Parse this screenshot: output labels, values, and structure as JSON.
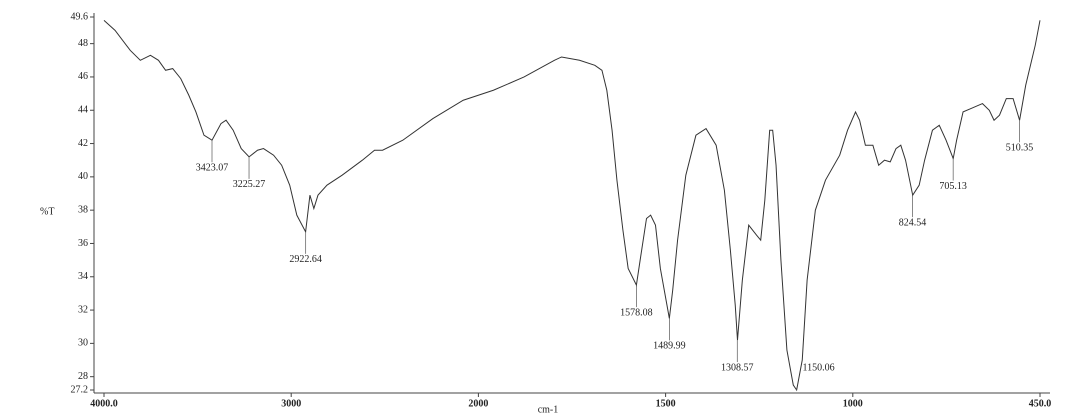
{
  "chart_data": {
    "type": "line",
    "ylabel": "%T",
    "xlabel": "cm-1",
    "xlim": [
      4000,
      450
    ],
    "ylim": [
      27.2,
      49.6
    ],
    "xticks": [
      {
        "value": 4000,
        "label": "4000.0"
      },
      3000,
      2000,
      1500,
      1000,
      {
        "value": 450,
        "label": "450.0"
      }
    ],
    "yticks": [
      27.2,
      28,
      30,
      32,
      34,
      36,
      38,
      40,
      42,
      44,
      46,
      48,
      49.6
    ],
    "series": [
      {
        "color": "#333333",
        "x": [
          4000,
          3941,
          3860,
          3806,
          3752,
          3709,
          3671,
          3633,
          3590,
          3547,
          3509,
          3466,
          3423,
          3375,
          3348,
          3310,
          3267,
          3225,
          3180,
          3148,
          3094,
          3051,
          3008,
          2970,
          2923,
          2900,
          2879,
          2857,
          2809,
          2728,
          2620,
          2555,
          2512,
          2404,
          2243,
          2081,
          1960,
          1878,
          1797,
          1778,
          1730,
          1689,
          1670,
          1657,
          1643,
          1630,
          1614,
          1600,
          1578,
          1568,
          1551,
          1540,
          1527,
          1514,
          1490,
          1481,
          1468,
          1446,
          1419,
          1392,
          1365,
          1343,
          1327,
          1314,
          1308,
          1295,
          1278,
          1257,
          1246,
          1235,
          1222,
          1214,
          1205,
          1192,
          1176,
          1159,
          1150,
          1135,
          1122,
          1100,
          1073,
          1035,
          1014,
          992,
          980,
          963,
          941,
          924,
          907,
          890,
          873,
          859,
          845,
          824,
          805,
          789,
          766,
          746,
          726,
          705,
          695,
          676,
          653,
          619,
          599,
          585,
          569,
          549,
          529,
          510,
          492,
          478,
          464,
          450
        ],
        "values": [
          49.4,
          48.8,
          47.6,
          47.0,
          47.3,
          47.0,
          46.4,
          46.5,
          45.9,
          44.9,
          43.9,
          42.5,
          42.2,
          43.2,
          43.4,
          42.8,
          41.7,
          41.2,
          41.6,
          41.7,
          41.3,
          40.7,
          39.5,
          37.7,
          36.7,
          38.9,
          38.1,
          38.9,
          39.5,
          40.1,
          41.0,
          41.6,
          41.6,
          42.2,
          43.5,
          44.6,
          45.2,
          46.0,
          47.0,
          47.2,
          47.0,
          46.7,
          46.4,
          45.2,
          42.8,
          39.8,
          36.8,
          34.5,
          33.5,
          35.0,
          37.5,
          37.7,
          37.1,
          34.5,
          31.5,
          33.2,
          36.2,
          40.1,
          42.5,
          42.9,
          41.9,
          39.2,
          35.6,
          32.3,
          30.2,
          33.8,
          37.1,
          36.5,
          36.2,
          38.6,
          42.8,
          42.8,
          40.7,
          35.0,
          29.6,
          27.5,
          27.2,
          29.0,
          33.8,
          38.0,
          39.8,
          41.3,
          42.8,
          43.9,
          43.4,
          41.9,
          41.9,
          40.7,
          41.0,
          40.9,
          41.7,
          41.9,
          41.0,
          38.9,
          39.5,
          41.0,
          42.8,
          43.1,
          42.2,
          41.1,
          42.2,
          43.9,
          44.1,
          44.4,
          44.0,
          43.4,
          43.7,
          44.7,
          44.7,
          43.4,
          45.5,
          46.7,
          47.9,
          49.4
        ]
      }
    ],
    "peaks": [
      {
        "x": 3423.07,
        "y": 42.2
      },
      {
        "x": 3225.27,
        "y": 41.2
      },
      {
        "x": 2922.64,
        "y": 36.7
      },
      {
        "x": 1578.08,
        "y": 33.5
      },
      {
        "x": 1489.99,
        "y": 31.5
      },
      {
        "x": 1308.57,
        "y": 30.2
      },
      {
        "x": 1150.06,
        "y": 27.2
      },
      {
        "x": 824.54,
        "y": 38.9
      },
      {
        "x": 705.13,
        "y": 41.1
      },
      {
        "x": 510.35,
        "y": 43.4
      }
    ]
  }
}
